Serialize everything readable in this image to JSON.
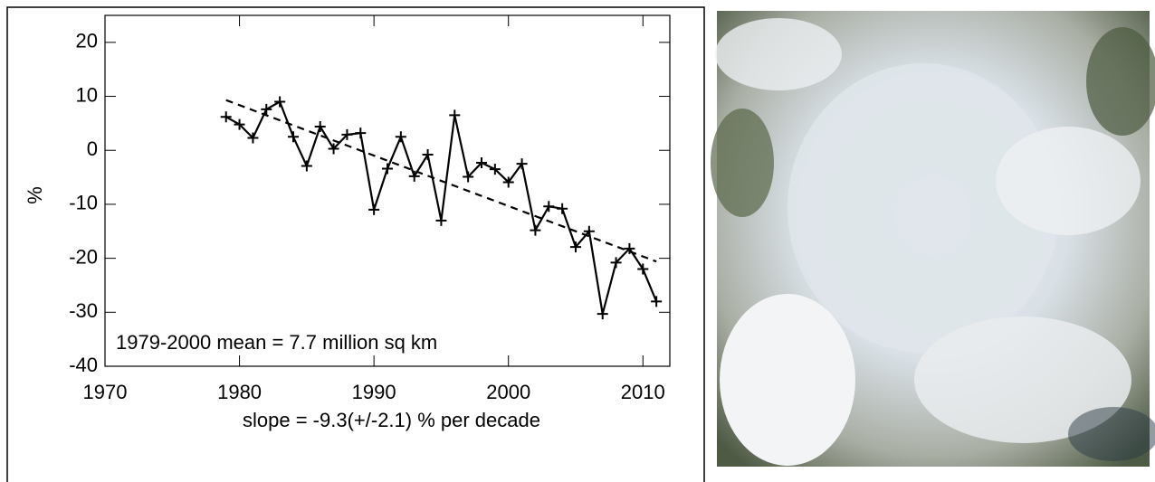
{
  "chart_data": {
    "type": "line",
    "ylabel": "%",
    "annotations": [
      "1979-2000 mean =   7.7 million sq km",
      "slope =  -9.3(+/-2.1) % per decade"
    ],
    "x": [
      1979,
      1980,
      1981,
      1982,
      1983,
      1984,
      1985,
      1986,
      1987,
      1988,
      1989,
      1990,
      1991,
      1992,
      1993,
      1994,
      1995,
      1996,
      1997,
      1998,
      1999,
      2000,
      2001,
      2002,
      2003,
      2004,
      2005,
      2006,
      2007,
      2008,
      2009,
      2010,
      2011
    ],
    "series": [
      {
        "color": "#000000",
        "values": [
          6.2,
          4.8,
          2.3,
          7.6,
          9.0,
          2.5,
          -2.9,
          4.4,
          0.3,
          2.9,
          3.2,
          -11,
          -3.4,
          2.5,
          -4.8,
          -0.8,
          -13,
          6.5,
          -4.9,
          -2.3,
          -3.5,
          -5.9,
          -2.5,
          -14.8,
          -10.4,
          -10.8,
          -17.9,
          -15,
          -30.3,
          -20.8,
          -18.2,
          -22,
          -28
        ]
      }
    ],
    "trend": {
      "x": [
        1979,
        2011
      ],
      "values": [
        9.3,
        -20.6
      ],
      "color": "#000000"
    },
    "xlim": [
      1970,
      2012
    ],
    "xticks": [
      1970,
      1980,
      1990,
      2000,
      2010
    ],
    "ylim": [
      -40,
      25
    ],
    "yticks": [
      -40,
      -30,
      -20,
      -10,
      0,
      10,
      20
    ]
  }
}
